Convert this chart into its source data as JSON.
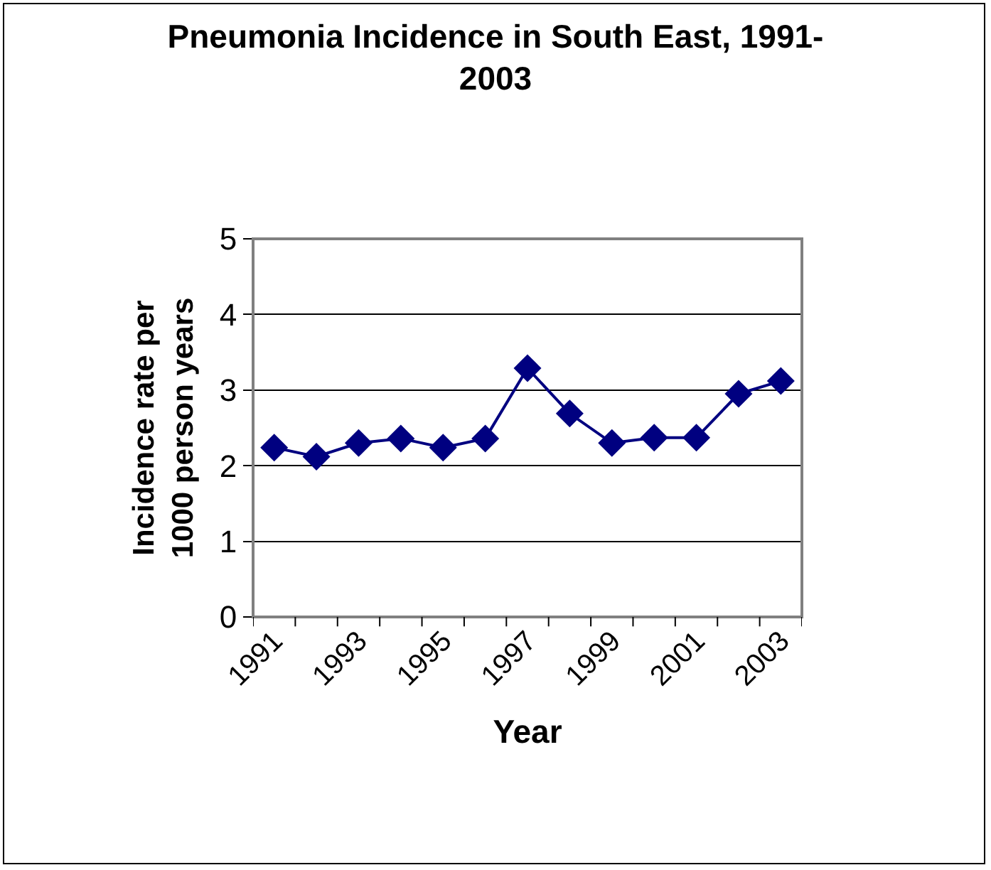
{
  "chart_data": {
    "type": "line",
    "title": "Pneumonia Incidence in South East, 1991-2003",
    "xlabel": "Year",
    "ylabel": "Incidence rate per 1000 person years",
    "categories": [
      "1991",
      null,
      "1993",
      null,
      "1995",
      null,
      "1997",
      null,
      "1999",
      null,
      "2001",
      null,
      "2003"
    ],
    "series": [
      {
        "color": "#000080",
        "values": [
          2.24,
          2.12,
          2.3,
          2.36,
          2.24,
          2.36,
          3.29,
          2.69,
          2.3,
          2.37,
          2.37,
          2.95,
          3.12
        ]
      }
    ],
    "ylim": [
      0,
      5
    ],
    "yticks": [
      0,
      1,
      2,
      3,
      4,
      5
    ],
    "grid": "y",
    "marker": "diamond",
    "line_style": "solid"
  }
}
